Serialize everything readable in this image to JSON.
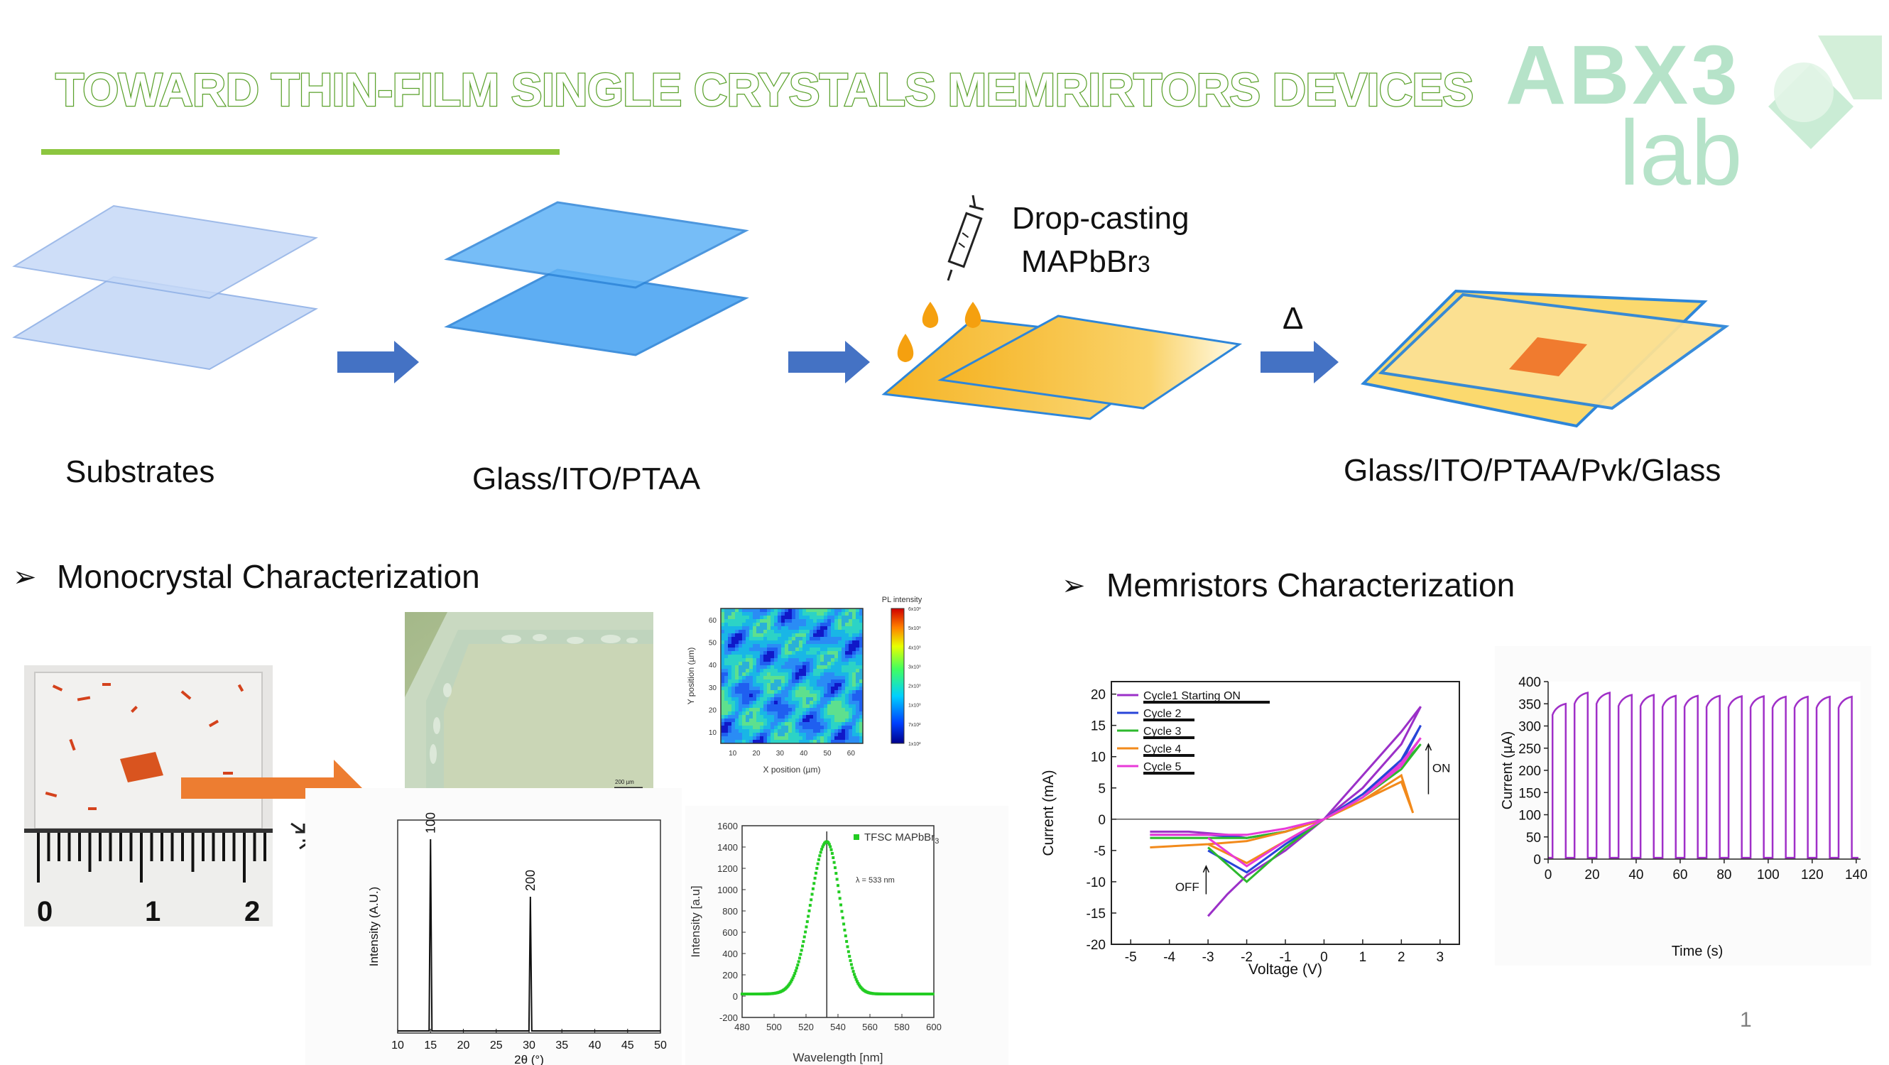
{
  "title": "TOWARD THIN-FILM SINGLE CRYSTALS MEMRIRTORS DEVICES",
  "logo": {
    "line1": "ABX3",
    "line2": "lab"
  },
  "process": {
    "step1_label": "Substrates",
    "step2_label": "Glass/ITO/PTAA",
    "step3_label_line1": "Drop-casting",
    "step3_label_line2": "MAPbBr",
    "step3_label_sub": "3",
    "heat_symbol": "Δ",
    "step4_label": "Glass/ITO/PTAA/Pvk/Glass"
  },
  "sections": {
    "bullet": "➢",
    "mono": "Monocrystal Characterization",
    "memristor": "Memristors Characterization"
  },
  "ruler": {
    "labels": [
      "0",
      "1",
      "2"
    ]
  },
  "micrograph": {
    "scalebar_label": "200 µm"
  },
  "page_number": "1",
  "colors": {
    "title_green": "#5aa12b",
    "accent_green": "#8cc63f",
    "arrow_blue": "#4472c4",
    "orange_arrow": "#ed7d31",
    "crystal_orange": "#e8742a"
  },
  "chart_data": [
    {
      "type": "heatmap",
      "title": "PL intensity",
      "xlabel": "X position (µm)",
      "ylabel": "Y position (µm)",
      "xticks": [
        "10",
        "20",
        "30",
        "40",
        "50",
        "60"
      ],
      "yticks": [
        "10",
        "20",
        "30",
        "40",
        "50",
        "60"
      ],
      "colorbar_ticks": [
        "1x10²",
        "7x10²",
        "1x10³",
        "2x10³",
        "3x10³",
        "4x10³",
        "5x10³",
        "6x10³"
      ]
    },
    {
      "type": "line",
      "xlabel": "2θ (°)",
      "ylabel": "Intensity (A.U.)",
      "xlim": [
        10,
        50
      ],
      "xticks": [
        "10",
        "15",
        "20",
        "25",
        "30",
        "35",
        "40",
        "45",
        "50"
      ],
      "peaks": [
        {
          "x": 15,
          "label": "100",
          "rel": 1.0
        },
        {
          "x": 30.2,
          "label": "200",
          "rel": 0.7
        }
      ]
    },
    {
      "type": "scatter",
      "xlabel": "Wavelength [nm]",
      "ylabel": "Intensity [a.u]",
      "xlim": [
        480,
        600
      ],
      "ylim": [
        -200,
        1600
      ],
      "xticks": [
        "480",
        "500",
        "520",
        "540",
        "560",
        "580",
        "600"
      ],
      "yticks": [
        "-200",
        "0",
        "200",
        "400",
        "600",
        "800",
        "1000",
        "1200",
        "1400",
        "1600"
      ],
      "legend": "TFSC MAPbBr",
      "legend_sub": "3",
      "annotation": "λ = 533 nm",
      "peak_x": 533
    },
    {
      "type": "line",
      "xlabel": "Voltage (V)",
      "ylabel": "Current (mA)",
      "xlim": [
        -5.5,
        3.5
      ],
      "ylim": [
        -20,
        22
      ],
      "xticks": [
        "-5",
        "-4",
        "-3",
        "-2",
        "-1",
        "0",
        "1",
        "2",
        "3"
      ],
      "yticks": [
        "20",
        "15",
        "10",
        "5",
        "0",
        "-5",
        "-10",
        "-15",
        "-20"
      ],
      "annotations": [
        "ON",
        "OFF"
      ],
      "series": [
        {
          "name": "Cycle1 Starting ON",
          "color": "#9b30c8",
          "x": [
            -4.5,
            -3.5,
            -2.5,
            -2.0,
            -1.0,
            0,
            1.0,
            2.0,
            2.5,
            2.0,
            1.0,
            0,
            -1.0,
            -2.0,
            -2.5,
            -3.0
          ],
          "y": [
            -2.0,
            -2.0,
            -2.5,
            -3.0,
            -2.0,
            0,
            5.0,
            12.0,
            18.0,
            14.0,
            7.0,
            0,
            -5.0,
            -9.0,
            -12.0,
            -15.5
          ]
        },
        {
          "name": "Cycle 2",
          "color": "#2845d8",
          "x": [
            -4.5,
            -3.0,
            -2.0,
            -1.0,
            0,
            1.0,
            2.0,
            2.5,
            2.0,
            1.0,
            0,
            -1.0,
            -2.0,
            -3.0
          ],
          "y": [
            -2.5,
            -2.5,
            -3.0,
            -2.0,
            0,
            4.0,
            9.5,
            15.0,
            9.0,
            4.0,
            0,
            -4.0,
            -8.5,
            -5.0
          ]
        },
        {
          "name": "Cycle 3",
          "color": "#2db92d",
          "x": [
            -4.5,
            -3.0,
            -2.0,
            -1.0,
            0,
            1.0,
            2.0,
            2.5,
            2.0,
            1.0,
            0,
            -1.0,
            -2.0,
            -3.0
          ],
          "y": [
            -3.0,
            -3.0,
            -3.0,
            -2.0,
            0,
            3.5,
            8.5,
            12.0,
            8.0,
            3.5,
            0,
            -4.5,
            -10.0,
            -4.5
          ]
        },
        {
          "name": "Cycle 4",
          "color": "#f28a1b",
          "x": [
            -4.5,
            -3.0,
            -2.0,
            -1.0,
            0,
            1.0,
            2.0,
            2.3,
            2.0,
            1.0,
            0,
            -1.0,
            -2.0,
            -3.0
          ],
          "y": [
            -4.5,
            -4.0,
            -3.5,
            -2.0,
            0,
            3.0,
            7.0,
            1.0,
            6.0,
            3.0,
            0,
            -3.5,
            -7.0,
            -4.0
          ]
        },
        {
          "name": "Cycle 5",
          "color": "#e83ad8",
          "x": [
            -4.5,
            -3.0,
            -2.0,
            -1.0,
            0,
            1.0,
            2.0,
            2.5,
            2.0,
            1.0,
            0,
            -1.0,
            -2.0,
            -3.0
          ],
          "y": [
            -2.5,
            -2.5,
            -2.5,
            -1.5,
            0,
            3.5,
            9.0,
            13.0,
            8.5,
            3.5,
            0,
            -3.5,
            -7.5,
            -3.0
          ]
        }
      ]
    },
    {
      "type": "line",
      "xlabel": "Time (s)",
      "ylabel": "Current (µA)",
      "xlim": [
        0,
        142
      ],
      "ylim": [
        0,
        400
      ],
      "xticks": [
        "0",
        "20",
        "40",
        "60",
        "80",
        "100",
        "120",
        "140"
      ],
      "yticks": [
        "0",
        "50",
        "100",
        "150",
        "200",
        "250",
        "300",
        "350",
        "400"
      ],
      "pulses": {
        "on_times": [
          2,
          12,
          22,
          32,
          42,
          52,
          62,
          72,
          82,
          92,
          102,
          112,
          122,
          132
        ],
        "width_s": 6,
        "peak_values": [
          350,
          375,
          375,
          370,
          370,
          368,
          368,
          368,
          367,
          367,
          366,
          366,
          366,
          366
        ]
      }
    }
  ]
}
